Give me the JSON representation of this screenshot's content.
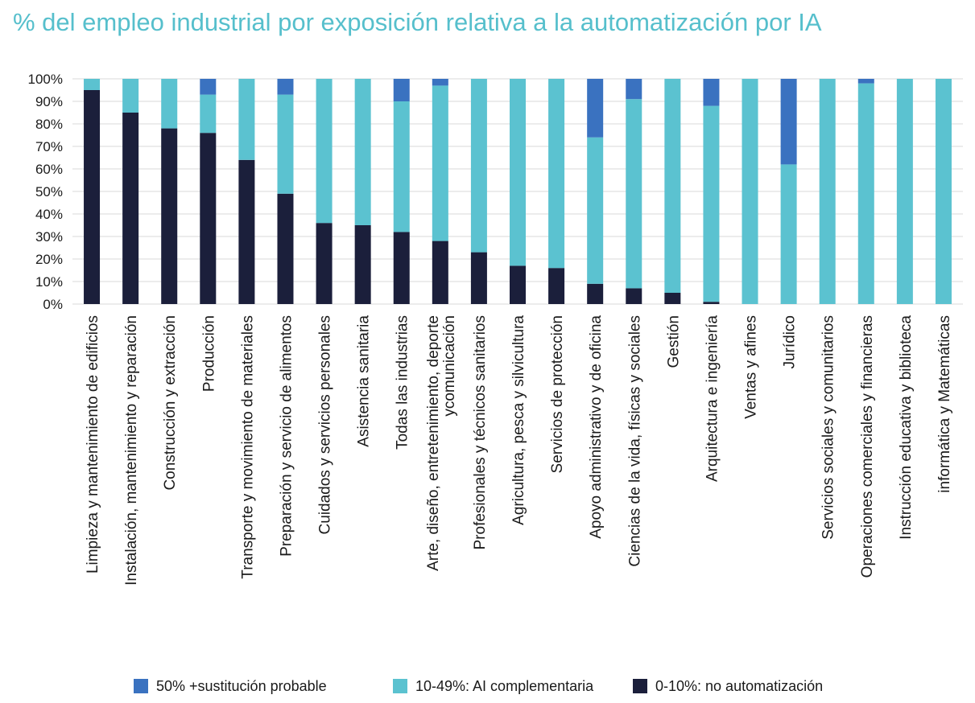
{
  "chart_data": {
    "type": "bar",
    "stacked": true,
    "title": "% del empleo industrial por exposición relativa a la automatización por IA",
    "xlabel": "",
    "ylabel": "",
    "ylim": [
      0,
      100
    ],
    "yticks": [
      "0%",
      "10%",
      "20%",
      "30%",
      "40%",
      "50%",
      "60%",
      "70%",
      "80%",
      "90%",
      "100%"
    ],
    "categories": [
      [
        "Limpieza y mantenimiento de edificios"
      ],
      [
        "Instalación, mantenimiento y reparación"
      ],
      [
        "Construcción y extracción"
      ],
      [
        "Producción"
      ],
      [
        "Transporte y movimiento de materiales"
      ],
      [
        "Preparación y servicio de alimentos"
      ],
      [
        "Cuidados y servicios personales"
      ],
      [
        "Asistencia sanitaria"
      ],
      [
        "Todas las industrias"
      ],
      [
        "Arte, diseño, entretenimiento, deporte",
        "ycomunicación"
      ],
      [
        "Profesionales y técnicos sanitarios"
      ],
      [
        "Agricultura, pesca y silvicultura"
      ],
      [
        "Servicios de protección"
      ],
      [
        "Apoyo administrativo y de oficina"
      ],
      [
        "Ciencias de la vida, físicas y sociales"
      ],
      [
        "Gestión"
      ],
      [
        "Arquitectura e ingeniería"
      ],
      [
        "Ventas y afines"
      ],
      [
        "Jurídico"
      ],
      [
        "Servicios sociales y comunitarios"
      ],
      [
        "Operaciones comerciales y financieras"
      ],
      [
        "Instrucción educativa y biblioteca"
      ],
      [
        "informática y Matemáticas"
      ]
    ],
    "series": [
      {
        "name": "0-10%: no automatización",
        "color": "#1b1f3b",
        "values": [
          95,
          85,
          78,
          76,
          64,
          49,
          36,
          35,
          32,
          28,
          23,
          17,
          16,
          9,
          7,
          5,
          1,
          0,
          0,
          0,
          0,
          0,
          0
        ]
      },
      {
        "name": "10-49%: AI complementaria",
        "color": "#5bc2d0",
        "values": [
          5,
          15,
          22,
          17,
          36,
          44,
          64,
          65,
          58,
          69,
          77,
          83,
          84,
          65,
          84,
          95,
          87,
          100,
          62,
          100,
          98,
          100,
          100
        ]
      },
      {
        "name": "50% +sustitución probable",
        "color": "#3a72c0",
        "values": [
          0,
          0,
          0,
          7,
          0,
          7,
          0,
          0,
          10,
          3,
          0,
          0,
          0,
          26,
          9,
          0,
          12,
          0,
          38,
          0,
          2,
          0,
          0
        ]
      }
    ],
    "legend": [
      {
        "label": "50% +sustitución probable",
        "color": "#3a72c0"
      },
      {
        "label": "10-49%: AI complementaria",
        "color": "#5bc2d0"
      },
      {
        "label": "0-10%: no automatización",
        "color": "#1b1f3b"
      }
    ],
    "legend_position": "bottom",
    "grid": true
  }
}
